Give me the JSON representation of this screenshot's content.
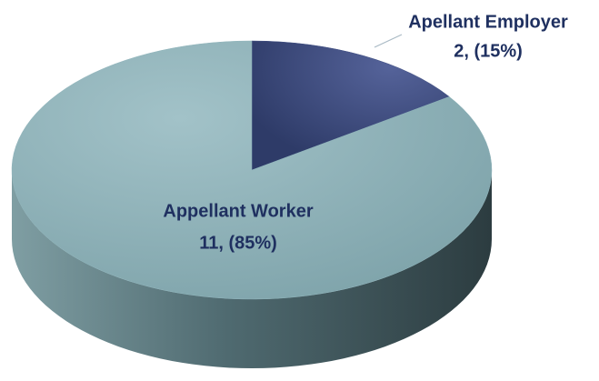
{
  "chart_data": {
    "type": "pie",
    "categories": [
      "Apellant Employer",
      "Appellant Worker"
    ],
    "values": [
      2,
      11
    ],
    "value_labels": [
      "2, (15%)",
      "11, (85%)"
    ],
    "colors": [
      "#3e4d80",
      "#8fb4bb"
    ]
  }
}
